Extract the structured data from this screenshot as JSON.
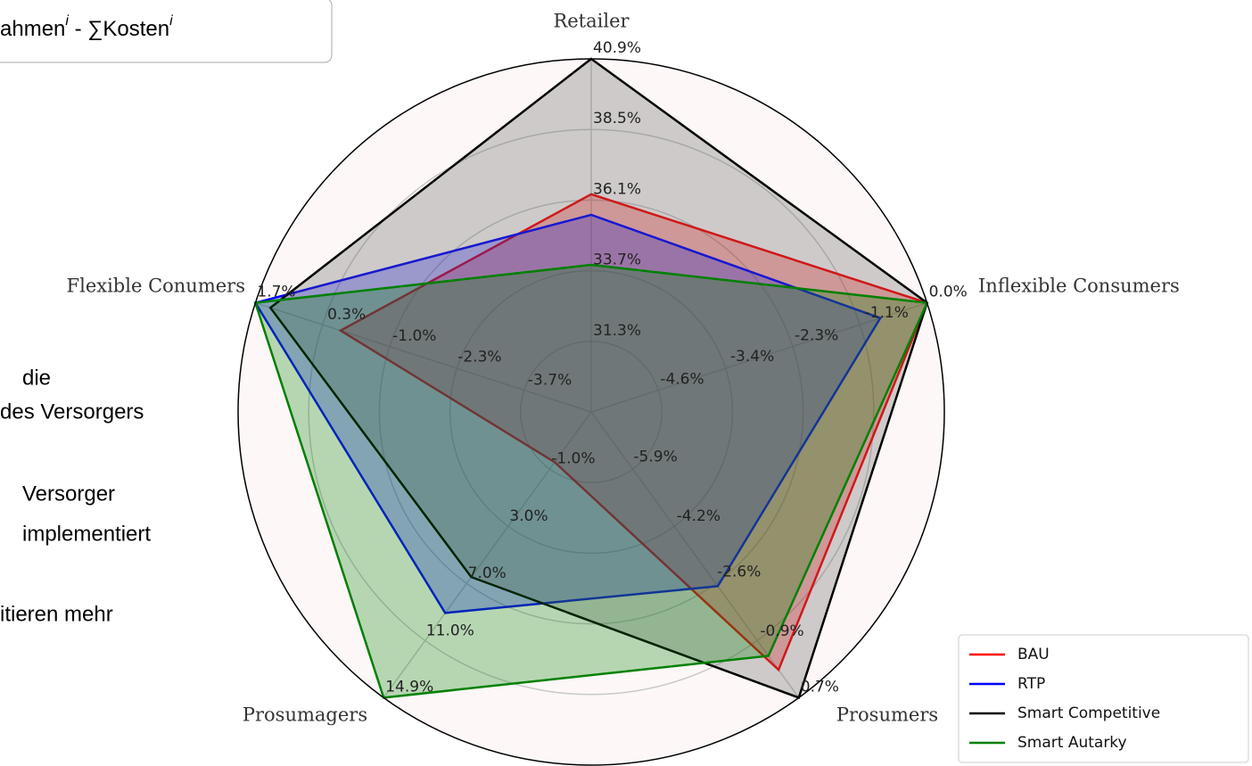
{
  "chart_data": {
    "type": "radar",
    "categories": [
      "Retailer",
      "Inflexible Consumers",
      "Prosumers",
      "Prosumagers",
      "Flexible Conumers"
    ],
    "axis_scales": [
      {
        "lim": [
          28.9,
          40.9
        ],
        "ticks": [
          {
            "value": 31.3,
            "label": "31.3%"
          },
          {
            "value": 33.7,
            "label": "33.7%"
          },
          {
            "value": 36.1,
            "label": "36.1%"
          },
          {
            "value": 38.5,
            "label": "38.5%"
          },
          {
            "value": 40.9,
            "label": "40.9%"
          }
        ]
      },
      {
        "lim": [
          -5.75,
          0
        ],
        "ticks": [
          {
            "value": -4.6,
            "label": "-4.6%"
          },
          {
            "value": -3.4,
            "label": "-3.4%"
          },
          {
            "value": -2.3,
            "label": "-2.3%"
          },
          {
            "value": -1.1,
            "label": "-1.1%"
          },
          {
            "value": 0,
            "label": "0.0%"
          }
        ]
      },
      {
        "lim": [
          -7.5,
          0.7
        ],
        "ticks": [
          {
            "value": -5.9,
            "label": "-5.9%"
          },
          {
            "value": -4.2,
            "label": "-4.2%"
          },
          {
            "value": -2.6,
            "label": "-2.6%"
          },
          {
            "value": -0.9,
            "label": "-0.9%"
          },
          {
            "value": 0.7,
            "label": "0.7%"
          }
        ]
      },
      {
        "lim": [
          -5.0,
          14.9
        ],
        "ticks": [
          {
            "value": -1.0,
            "label": "-1.0%"
          },
          {
            "value": 3.0,
            "label": "3.0%"
          },
          {
            "value": 7.0,
            "label": "7.0%"
          },
          {
            "value": 11.0,
            "label": "11.0%"
          },
          {
            "value": 14.9,
            "label": "14.9%"
          }
        ]
      },
      {
        "lim": [
          -5.0,
          1.7
        ],
        "ticks": [
          {
            "value": -3.7,
            "label": "-3.7%"
          },
          {
            "value": -2.3,
            "label": "-2.3%"
          },
          {
            "value": -1.0,
            "label": "-1.0%"
          },
          {
            "value": 0.3,
            "label": "0.3%"
          },
          {
            "value": 1.7,
            "label": "1.7%"
          }
        ]
      }
    ],
    "series": [
      {
        "name": "BAU",
        "color": "#ff0000",
        "values": [
          36.3,
          0.0,
          -0.1,
          -1.5,
          0.0
        ]
      },
      {
        "name": "RTP",
        "color": "#0000ff",
        "values": [
          35.6,
          -0.8,
          -2.5,
          9.0,
          1.7
        ]
      },
      {
        "name": "Smart Competitive",
        "color": "#000000",
        "values": [
          40.9,
          0.0,
          0.7,
          6.5,
          1.4
        ]
      },
      {
        "name": "Smart Autarky",
        "color": "#008000",
        "values": [
          33.9,
          0.0,
          -0.5,
          14.9,
          1.7
        ]
      }
    ],
    "legend": "lower right"
  },
  "background": {
    "box_text": [
      "ahmen",
      "i",
      " - ∑Kosten",
      "i"
    ],
    "side_text": [
      "die",
      "des Versorgers",
      "Versorger",
      "implementiert",
      "itieren mehr"
    ]
  }
}
